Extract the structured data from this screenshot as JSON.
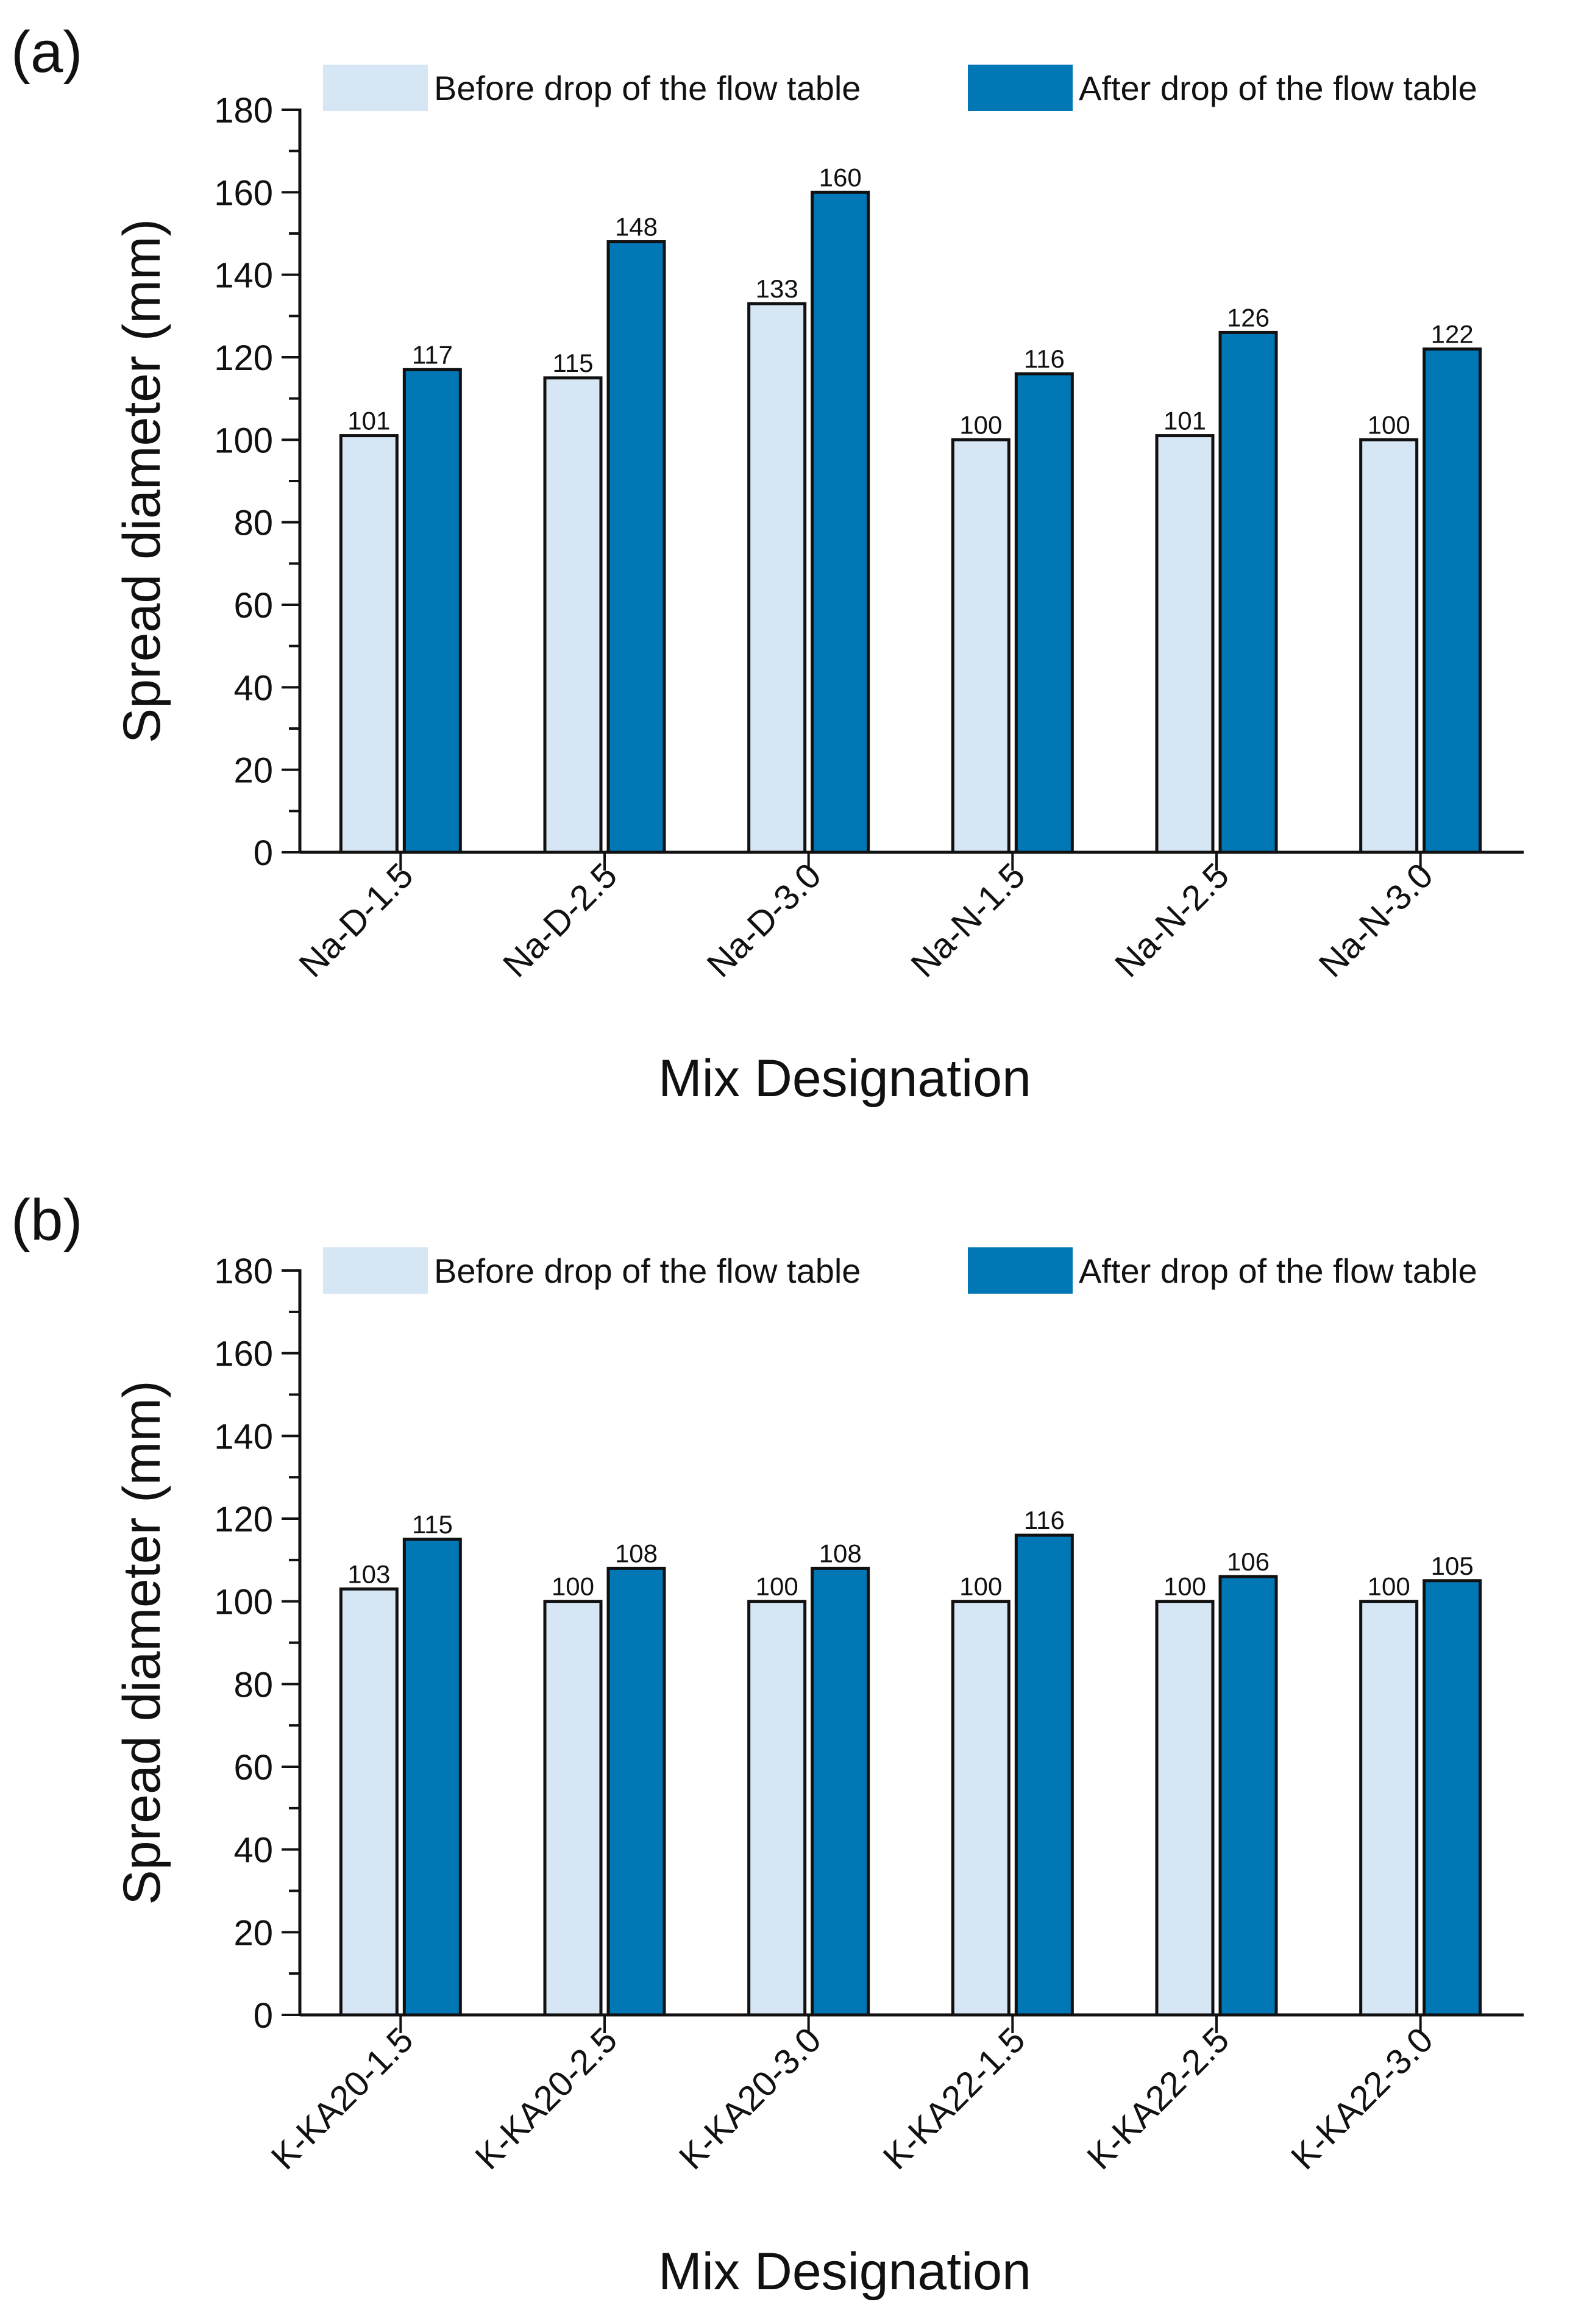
{
  "chart_data": [
    {
      "panel": "(a)",
      "type": "bar",
      "title": "",
      "xlabel": "Mix Designation",
      "ylabel": "Spread diameter (mm)",
      "ylim": [
        0,
        180
      ],
      "yticks": [
        0,
        20,
        40,
        60,
        80,
        100,
        120,
        140,
        160,
        180
      ],
      "legend_position": "top",
      "categories": [
        "Na-D-1.5",
        "Na-D-2.5",
        "Na-D-3.0",
        "Na-N-1.5",
        "Na-N-2.5",
        "Na-N-3.0"
      ],
      "series": [
        {
          "name": "Before drop of the flow table",
          "color": "#d6e6f4",
          "values": [
            101,
            115,
            133,
            100,
            101,
            100
          ]
        },
        {
          "name": "After drop of the flow table",
          "color": "#0277b5",
          "values": [
            117,
            148,
            160,
            116,
            126,
            122
          ]
        }
      ]
    },
    {
      "panel": "(b)",
      "type": "bar",
      "title": "",
      "xlabel": "Mix Designation",
      "ylabel": "Spread diameter (mm)",
      "ylim": [
        0,
        180
      ],
      "yticks": [
        0,
        20,
        40,
        60,
        80,
        100,
        120,
        140,
        160,
        180
      ],
      "legend_position": "top",
      "categories": [
        "K-KA20-1.5",
        "K-KA20-2.5",
        "K-KA20-3.0",
        "K-KA22-1.5",
        "K-KA22-2.5",
        "K-KA22-3.0"
      ],
      "series": [
        {
          "name": "Before drop of the flow table",
          "color": "#d6e6f4",
          "values": [
            103,
            100,
            100,
            100,
            100,
            100
          ]
        },
        {
          "name": "After drop of the flow table",
          "color": "#0277b5",
          "values": [
            115,
            108,
            108,
            116,
            106,
            105
          ]
        }
      ]
    }
  ]
}
